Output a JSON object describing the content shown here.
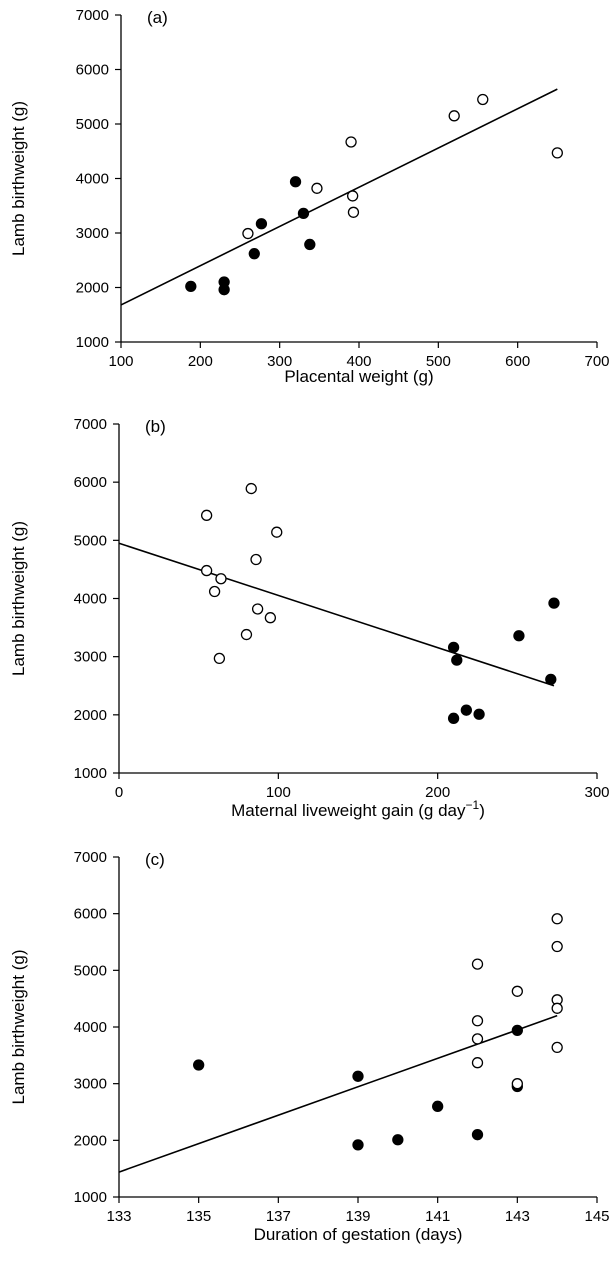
{
  "chart_data": [
    {
      "type": "scatter",
      "panel_label": "(a)",
      "xlabel": "Placental weight (g)",
      "xlabel_sup": "",
      "xlabel_tail": "",
      "ylabel": "Lamb birthweight (g)",
      "xlim": [
        100,
        700
      ],
      "ylim": [
        1000,
        7000
      ],
      "xticks": [
        100,
        200,
        300,
        400,
        500,
        600,
        700
      ],
      "yticks": [
        1000,
        2000,
        3000,
        4000,
        5000,
        6000,
        7000
      ],
      "series": [
        {
          "marker": "filled",
          "points": [
            [
              188,
              2020
            ],
            [
              230,
              1960
            ],
            [
              230,
              2100
            ],
            [
              268,
              2620
            ],
            [
              277,
              3170
            ],
            [
              320,
              3940
            ],
            [
              330,
              3360
            ],
            [
              338,
              2790
            ]
          ]
        },
        {
          "marker": "open",
          "points": [
            [
              260,
              2990
            ],
            [
              347,
              3820
            ],
            [
              390,
              4670
            ],
            [
              392,
              3680
            ],
            [
              393,
              3380
            ],
            [
              520,
              5150
            ],
            [
              556,
              5450
            ],
            [
              650,
              4470
            ]
          ]
        }
      ],
      "fit_line": [
        [
          100,
          1680
        ],
        [
          650,
          5640
        ]
      ]
    },
    {
      "type": "scatter",
      "panel_label": "(b)",
      "xlabel": "Maternal liveweight gain (g day",
      "xlabel_sup": "−1",
      "xlabel_tail": ")",
      "ylabel": "Lamb birthweight (g)",
      "xlim": [
        0,
        300
      ],
      "ylim": [
        1000,
        7000
      ],
      "xticks": [
        0,
        100,
        200,
        300
      ],
      "yticks": [
        1000,
        2000,
        3000,
        4000,
        5000,
        6000,
        7000
      ],
      "series": [
        {
          "marker": "open",
          "points": [
            [
              55,
              5430
            ],
            [
              55,
              4480
            ],
            [
              60,
              4120
            ],
            [
              63,
              2970
            ],
            [
              64,
              4340
            ],
            [
              80,
              3380
            ],
            [
              83,
              5890
            ],
            [
              86,
              4670
            ],
            [
              87,
              3820
            ],
            [
              95,
              3670
            ],
            [
              99,
              5140
            ]
          ]
        },
        {
          "marker": "filled",
          "points": [
            [
              210,
              3160
            ],
            [
              210,
              1940
            ],
            [
              212,
              2940
            ],
            [
              218,
              2080
            ],
            [
              226,
              2010
            ],
            [
              251,
              3360
            ],
            [
              271,
              2610
            ],
            [
              273,
              3920
            ]
          ]
        }
      ],
      "fit_line": [
        [
          0,
          4950
        ],
        [
          273,
          2500
        ]
      ]
    },
    {
      "type": "scatter",
      "panel_label": "(c)",
      "xlabel": "Duration of gestation (days)",
      "xlabel_sup": "",
      "xlabel_tail": "",
      "ylabel": "Lamb birthweight (g)",
      "xlim": [
        133,
        145
      ],
      "ylim": [
        1000,
        7000
      ],
      "xticks": [
        133,
        135,
        137,
        139,
        141,
        143,
        145
      ],
      "yticks": [
        1000,
        2000,
        3000,
        4000,
        5000,
        6000,
        7000
      ],
      "series": [
        {
          "marker": "filled",
          "points": [
            [
              135,
              3330
            ],
            [
              139,
              3130
            ],
            [
              139,
              1920
            ],
            [
              140,
              2010
            ],
            [
              141,
              2600
            ],
            [
              142,
              2100
            ],
            [
              143,
              3940
            ],
            [
              143,
              2950
            ]
          ]
        },
        {
          "marker": "open",
          "points": [
            [
              142,
              5110
            ],
            [
              142,
              4110
            ],
            [
              142,
              3790
            ],
            [
              142,
              3370
            ],
            [
              143,
              4630
            ],
            [
              143,
              3000
            ],
            [
              144,
              5910
            ],
            [
              144,
              5420
            ],
            [
              144,
              4480
            ],
            [
              144,
              4330
            ],
            [
              144,
              3640
            ]
          ]
        }
      ],
      "fit_line": [
        [
          133,
          1440
        ],
        [
          144,
          4200
        ]
      ]
    }
  ]
}
